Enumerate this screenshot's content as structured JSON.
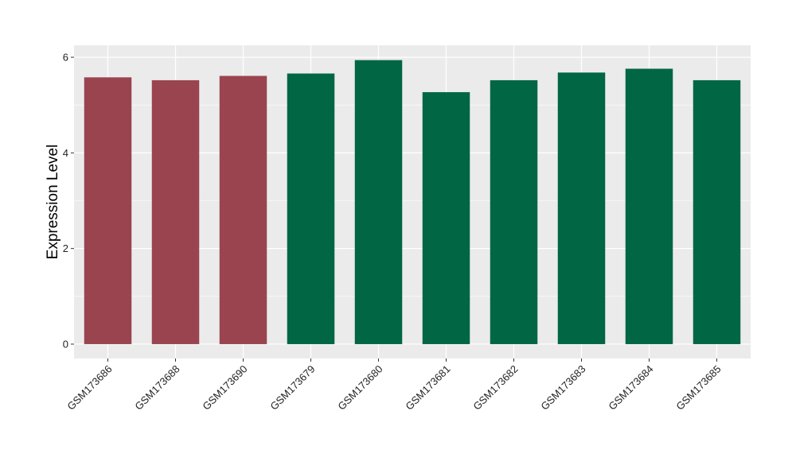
{
  "chart_data": {
    "type": "bar",
    "title": "",
    "xlabel": "",
    "ylabel": "Expression Level",
    "ylim": [
      -0.3,
      6.25
    ],
    "yticks": [
      0,
      2,
      4,
      6
    ],
    "grid": true,
    "categories": [
      "GSM173686",
      "GSM173688",
      "GSM173690",
      "GSM173679",
      "GSM173680",
      "GSM173681",
      "GSM173682",
      "GSM173683",
      "GSM173684",
      "GSM173685"
    ],
    "values": [
      5.58,
      5.52,
      5.61,
      5.66,
      5.94,
      5.27,
      5.52,
      5.68,
      5.76,
      5.52
    ],
    "bar_colors": [
      "#9a4450",
      "#9a4450",
      "#9a4450",
      "#006644",
      "#006644",
      "#006644",
      "#006644",
      "#006644",
      "#006644",
      "#006644"
    ],
    "panel_background": "#ebebeb",
    "grid_color": "#ffffff"
  }
}
